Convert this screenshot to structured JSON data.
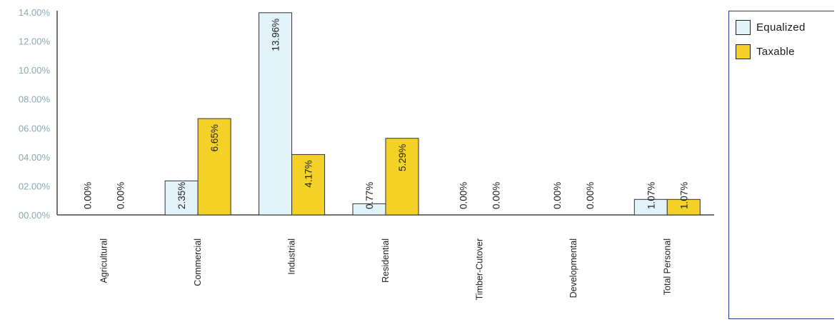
{
  "chart_data": {
    "type": "bar",
    "title": "",
    "xlabel": "",
    "ylabel": "",
    "ylim": [
      0,
      14
    ],
    "yticks": [
      "00.00%",
      "02.00%",
      "04.00%",
      "06.00%",
      "08.00%",
      "10.00%",
      "12.00%",
      "14.00%"
    ],
    "categories": [
      "Agricultural",
      "Commercial",
      "Industrial",
      "Residential",
      "Timber-Cutover",
      "Developmental",
      "Total Personal"
    ],
    "series": [
      {
        "name": "Equalized",
        "color": "#e3f3fa",
        "values": [
          0.0,
          2.35,
          13.96,
          0.77,
          0.0,
          0.0,
          1.07
        ],
        "labels": [
          "0.00%",
          "2.35%",
          "13.96%",
          "0.77%",
          "0.00%",
          "0.00%",
          "1.07%"
        ]
      },
      {
        "name": "Taxable",
        "color": "#f3d127",
        "values": [
          0.0,
          6.65,
          4.17,
          5.29,
          0.0,
          0.0,
          1.07
        ],
        "labels": [
          "0.00%",
          "6.65%",
          "4.17%",
          "5.29%",
          "0.00%",
          "0.00%",
          "1.07%"
        ]
      }
    ],
    "grid": false,
    "legend_position": "right"
  }
}
